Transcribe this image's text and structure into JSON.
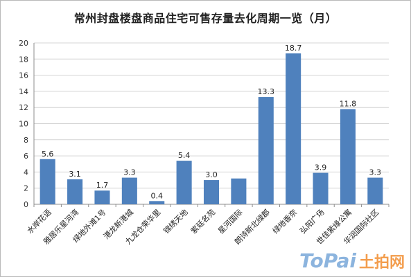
{
  "chart_data": {
    "type": "bar",
    "title": "常州封盘楼盘商品住宅可售存量去化周期一览（月）",
    "categories": [
      "水岸花语",
      "雅居乐星河湾",
      "绿地外滩1号",
      "港龙新港城",
      "九龙仓荣华里",
      "锦绣天地",
      "紫廷名苑",
      "星河国际",
      "朗诗新北绿郡",
      "绿地香奈",
      "弘阳广场",
      "世佳紫缘公寓",
      "华润国际社区"
    ],
    "values": [
      5.6,
      3.1,
      1.7,
      3.3,
      0.4,
      5.4,
      3.0,
      3.2,
      13.3,
      18.7,
      3.9,
      11.8,
      3.3
    ],
    "labels": [
      "5.6",
      "3.1",
      "1.7",
      "3.3",
      "0.4",
      "5.4",
      "3.0",
      "",
      "13.3",
      "18.7",
      "3.9",
      "11.8",
      "3.3"
    ],
    "ylim": [
      0,
      20
    ],
    "yticks": [
      0,
      2,
      4,
      6,
      8,
      10,
      12,
      14,
      16,
      18,
      20
    ],
    "grid": true,
    "legend": "none",
    "bar_color": "#4f81bd"
  },
  "watermark": {
    "latin": "ToPai",
    "cjk": "土拍网"
  }
}
